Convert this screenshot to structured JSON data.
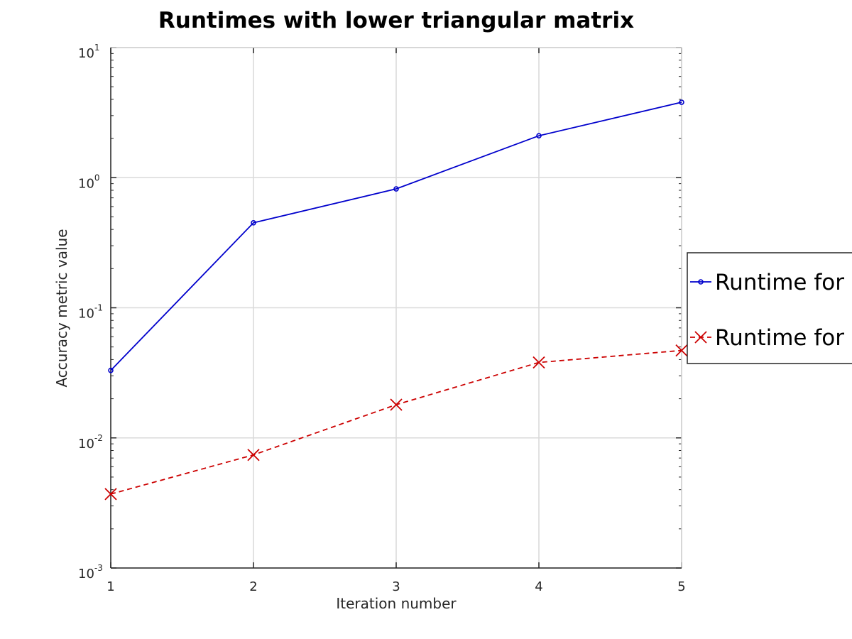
{
  "chart_data": {
    "type": "line",
    "title": "Runtimes with lower triangular matrix",
    "xlabel": "Iteration number",
    "ylabel": "Accuracy metric value",
    "x": [
      1,
      2,
      3,
      4,
      5
    ],
    "xlim": [
      1,
      5
    ],
    "ylim": [
      0.001,
      10
    ],
    "yscale": "log",
    "grid": true,
    "x_ticks": [
      "1",
      "2",
      "3",
      "4",
      "5"
    ],
    "y_ticks": [
      {
        "value": 0.001,
        "base": "10",
        "exponent": "-3"
      },
      {
        "value": 0.01,
        "base": "10",
        "exponent": "-2"
      },
      {
        "value": 0.1,
        "base": "10",
        "exponent": "-1"
      },
      {
        "value": 1,
        "base": "10",
        "exponent": "0"
      },
      {
        "value": 10,
        "base": "10",
        "exponent": "1"
      }
    ],
    "legend_position": "right, partially cut off",
    "series": [
      {
        "name": "Runtime for ir",
        "values": [
          0.033,
          0.45,
          0.82,
          2.1,
          3.8
        ],
        "color": "#0000cc",
        "line_style": "solid",
        "marker": "circle"
      },
      {
        "name": "Runtime for ro",
        "values": [
          0.0037,
          0.0074,
          0.018,
          0.038,
          0.047
        ],
        "color": "#cc0000",
        "line_style": "dashed",
        "marker": "x"
      }
    ]
  }
}
